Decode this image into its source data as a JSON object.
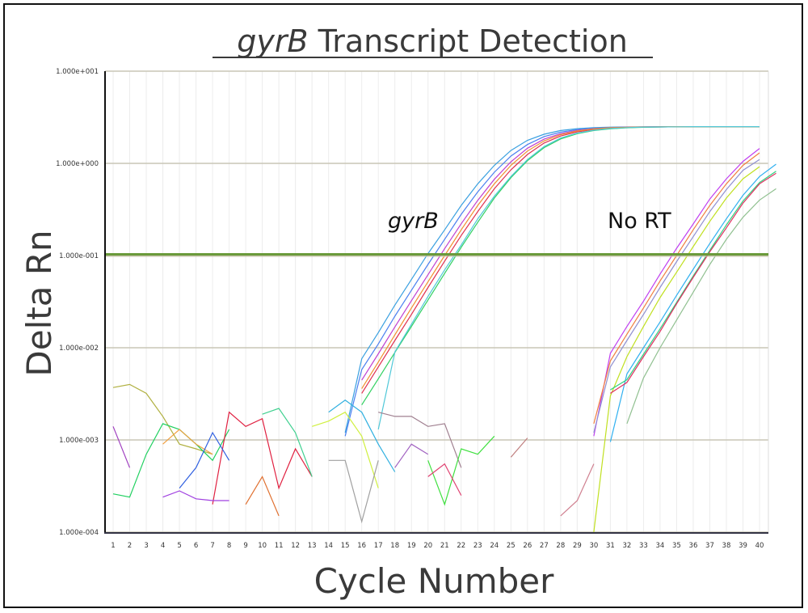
{
  "chart_data": {
    "type": "line",
    "title_italic": "gyrB",
    "title_rest": " Transcript Detection",
    "xlabel": "Cycle Number",
    "ylabel": "Delta Rn",
    "yscale": "log",
    "ylim": [
      0.0001,
      10
    ],
    "xlim": [
      1,
      40
    ],
    "y_tick_labels": [
      "1.000e-004",
      "1.000e-003",
      "1.000e-002",
      "1.000e-001",
      "1.000e+000",
      "1.000e+001"
    ],
    "y_tick_values": [
      0.0001,
      0.001,
      0.01,
      0.1,
      1,
      10
    ],
    "x_ticks": [
      1,
      2,
      3,
      4,
      5,
      6,
      7,
      8,
      9,
      10,
      11,
      12,
      13,
      14,
      15,
      16,
      17,
      18,
      19,
      20,
      21,
      22,
      23,
      24,
      25,
      26,
      27,
      28,
      29,
      30,
      31,
      32,
      33,
      34,
      35,
      36,
      37,
      38,
      39,
      40
    ],
    "grid": true,
    "threshold": 0.103,
    "threshold_color": "#6a9a3a",
    "annotations": [
      {
        "text": "gyrB",
        "italic": true,
        "cycle": 23,
        "value": 0.2
      },
      {
        "text": "No RT",
        "italic": false,
        "cycle": 33,
        "value": 0.2
      }
    ],
    "series": [
      {
        "color": "#4a7ff0",
        "start": 15,
        "values": [
          0.0011,
          0.0058,
          0.011,
          0.022,
          0.042,
          0.08,
          0.15,
          0.28,
          0.49,
          0.8,
          1.2,
          1.6,
          1.95,
          2.18,
          2.32,
          2.4,
          2.45,
          2.47,
          2.48,
          2.49,
          2.5,
          2.5,
          2.5,
          2.5,
          2.5,
          2.5
        ]
      },
      {
        "color": "#3aa0e0",
        "start": 15,
        "values": [
          0.0012,
          0.0076,
          0.0146,
          0.029,
          0.055,
          0.105,
          0.19,
          0.35,
          0.6,
          0.95,
          1.38,
          1.78,
          2.07,
          2.27,
          2.38,
          2.44,
          2.47,
          2.48,
          2.49,
          2.5,
          2.5,
          2.5,
          2.5,
          2.5,
          2.5,
          2.5
        ]
      },
      {
        "color": "#c040d0",
        "start": 16,
        "values": [
          0.00445,
          0.0086,
          0.0168,
          0.0324,
          0.062,
          0.119,
          0.221,
          0.397,
          0.672,
          1.04,
          1.46,
          1.83,
          2.1,
          2.28,
          2.38,
          2.44,
          2.47,
          2.48,
          2.49,
          2.49,
          2.5,
          2.5,
          2.5,
          2.5,
          2.5
        ]
      },
      {
        "color": "#e03050",
        "start": 16,
        "values": [
          0.0032,
          0.0062,
          0.012,
          0.023,
          0.045,
          0.087,
          0.165,
          0.3,
          0.53,
          0.85,
          1.25,
          1.66,
          1.98,
          2.2,
          2.33,
          2.41,
          2.45,
          2.47,
          2.48,
          2.49,
          2.5,
          2.5,
          2.5,
          2.5,
          2.5
        ]
      },
      {
        "color": "#30d060",
        "start": 16,
        "values": [
          0.0024,
          0.0046,
          0.0089,
          0.017,
          0.033,
          0.064,
          0.123,
          0.23,
          0.42,
          0.7,
          1.07,
          1.48,
          1.84,
          2.1,
          2.27,
          2.37,
          2.43,
          2.46,
          2.48,
          2.49,
          2.5,
          2.5,
          2.5,
          2.5,
          2.5
        ]
      },
      {
        "color": "#f09030",
        "start": 16,
        "values": [
          0.0036,
          0.007,
          0.0138,
          0.027,
          0.052,
          0.1,
          0.19,
          0.35,
          0.6,
          0.95,
          1.36,
          1.75,
          2.05,
          2.25,
          2.36,
          2.43,
          2.46,
          2.48,
          2.49,
          2.5,
          2.5,
          2.5,
          2.5,
          2.5,
          2.5
        ]
      },
      {
        "color": "#50c8d8",
        "start": 17,
        "values": [
          0.0013,
          0.009,
          0.018,
          0.036,
          0.07,
          0.13,
          0.25,
          0.44,
          0.72,
          1.1,
          1.52,
          1.88,
          2.13,
          2.29,
          2.39,
          2.44,
          2.47,
          2.48,
          2.49,
          2.5,
          2.5,
          2.5,
          2.5,
          2.5
        ]
      },
      {
        "color": "#c040f0",
        "start": 30,
        "values": [
          0.0011,
          0.0087,
          0.017,
          0.032,
          0.063,
          0.12,
          0.22,
          0.41,
          0.68,
          1.05,
          1.45
        ]
      },
      {
        "color": "#f08040",
        "start": 30,
        "values": [
          0.0015,
          0.0072,
          0.014,
          0.027,
          0.053,
          0.1,
          0.19,
          0.35,
          0.6,
          0.95,
          1.3
        ]
      },
      {
        "color": "#9090d0",
        "start": 30,
        "values": [
          0.0012,
          0.0062,
          0.012,
          0.023,
          0.045,
          0.086,
          0.16,
          0.3,
          0.52,
          0.84,
          1.1
        ]
      },
      {
        "color": "#30b0f0",
        "start": 31,
        "values": [
          0.00095,
          0.0052,
          0.01,
          0.019,
          0.037,
          0.071,
          0.135,
          0.25,
          0.45,
          0.72,
          0.98
        ]
      },
      {
        "color": "#c0e020",
        "start": 30,
        "values": [
          0.0001,
          0.003,
          0.008,
          0.017,
          0.035,
          0.066,
          0.125,
          0.235,
          0.42,
          0.68,
          0.92
        ]
      },
      {
        "color": "#30d080",
        "start": 31,
        "values": [
          0.0035,
          0.0045,
          0.0085,
          0.016,
          0.031,
          0.06,
          0.114,
          0.215,
          0.39,
          0.62,
          0.82
        ]
      },
      {
        "color": "#e03060",
        "start": 31,
        "values": [
          0.0032,
          0.0042,
          0.008,
          0.015,
          0.03,
          0.058,
          0.11,
          0.2,
          0.37,
          0.6,
          0.78
        ]
      },
      {
        "color": "#90c090",
        "start": 32,
        "values": [
          0.0015,
          0.0047,
          0.01,
          0.02,
          0.04,
          0.08,
          0.15,
          0.26,
          0.4,
          0.53
        ]
      },
      {
        "color": "#b0b040",
        "start": 1,
        "values": [
          0.0037,
          0.004,
          0.0032,
          0.0018,
          0.0009,
          0.0008,
          0.0007
        ]
      },
      {
        "color": "#20d060",
        "start": 1,
        "values": [
          0.00026,
          0.00024,
          0.0007,
          0.0015,
          0.0013,
          0.0009,
          0.0006,
          0.0013
        ]
      },
      {
        "color": "#a040c0",
        "start": 1,
        "values": [
          0.0014,
          0.0005
        ]
      },
      {
        "color": "#e02040",
        "start": 7,
        "values": [
          0.0002,
          0.002,
          0.0014,
          0.0017,
          0.0003,
          0.0008,
          0.0004
        ]
      },
      {
        "color": "#30b0e0",
        "start": 14,
        "values": [
          0.002,
          0.0027,
          0.002,
          0.0009,
          0.00045
        ]
      },
      {
        "color": "#40d090",
        "start": 10,
        "values": [
          0.0019,
          0.0022,
          0.0012,
          0.0004
        ]
      },
      {
        "color": "#a08090",
        "start": 17,
        "values": [
          0.002,
          0.0018,
          0.0018,
          0.0014,
          0.0015,
          0.0005
        ]
      },
      {
        "color": "#40e040",
        "start": 20,
        "values": [
          0.0006,
          0.0002,
          0.0008,
          0.0007,
          0.0011
        ]
      },
      {
        "color": "#f0a040",
        "start": 4,
        "values": [
          0.0009,
          0.0013,
          0.0009,
          0.0007
        ]
      },
      {
        "color": "#3060e0",
        "start": 5,
        "values": [
          0.0003,
          0.0005,
          0.0012,
          0.0006
        ]
      },
      {
        "color": "#a040e0",
        "start": 4,
        "values": [
          0.00024,
          0.00028,
          0.00023,
          0.00022,
          0.00022
        ]
      },
      {
        "color": "#d0f040",
        "start": 13,
        "values": [
          0.0014,
          0.0016,
          0.002,
          0.0011,
          0.0003
        ]
      },
      {
        "color": "#a0a0a0",
        "start": 14,
        "values": [
          0.0006,
          0.0006,
          0.00013,
          0.0006
        ]
      },
      {
        "color": "#d08090",
        "start": 28,
        "values": [
          0.00015,
          0.00022,
          0.00055
        ]
      },
      {
        "color": "#c08080",
        "start": 25,
        "values": [
          0.00065,
          0.00105
        ]
      },
      {
        "color": "#e07030",
        "start": 9,
        "values": [
          0.0002,
          0.0004,
          0.00015
        ]
      },
      {
        "color": "#e04070",
        "start": 20,
        "values": [
          0.0004,
          0.00055,
          0.00025
        ]
      },
      {
        "color": "#a060c0",
        "start": 18,
        "values": [
          0.0005,
          0.0009,
          0.0007
        ]
      }
    ]
  }
}
